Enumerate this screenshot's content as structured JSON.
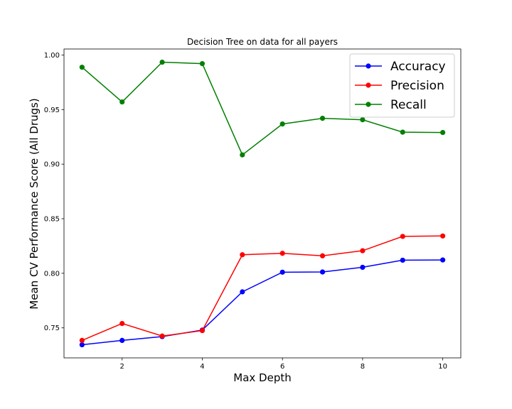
{
  "chart_data": {
    "type": "line",
    "title": "Decision Tree on data for all payers",
    "xlabel": "Max Depth",
    "ylabel": "Mean CV Performance Score (All Drugs)",
    "x": [
      1,
      2,
      3,
      4,
      5,
      6,
      7,
      8,
      9,
      10
    ],
    "xticks": [
      2,
      4,
      6,
      8,
      10
    ],
    "xlim": [
      0.55,
      10.45
    ],
    "yticks": [
      0.75,
      0.8,
      0.85,
      0.9,
      0.95,
      1.0
    ],
    "ylim": [
      0.7225,
      1.0055
    ],
    "grid": false,
    "legend_position": "top-right",
    "series": [
      {
        "name": "Accuracy",
        "color": "#0000ff",
        "values": [
          0.7345,
          0.7385,
          0.742,
          0.748,
          0.783,
          0.801,
          0.8012,
          0.8055,
          0.812,
          0.8122
        ]
      },
      {
        "name": "Precision",
        "color": "#ff0000",
        "values": [
          0.7385,
          0.754,
          0.7425,
          0.7475,
          0.817,
          0.8183,
          0.816,
          0.8207,
          0.8338,
          0.8342
        ]
      },
      {
        "name": "Recall",
        "color": "#008000",
        "values": [
          0.9888,
          0.957,
          0.9934,
          0.9921,
          0.9085,
          0.9368,
          0.942,
          0.9407,
          0.9293,
          0.929
        ]
      }
    ]
  }
}
